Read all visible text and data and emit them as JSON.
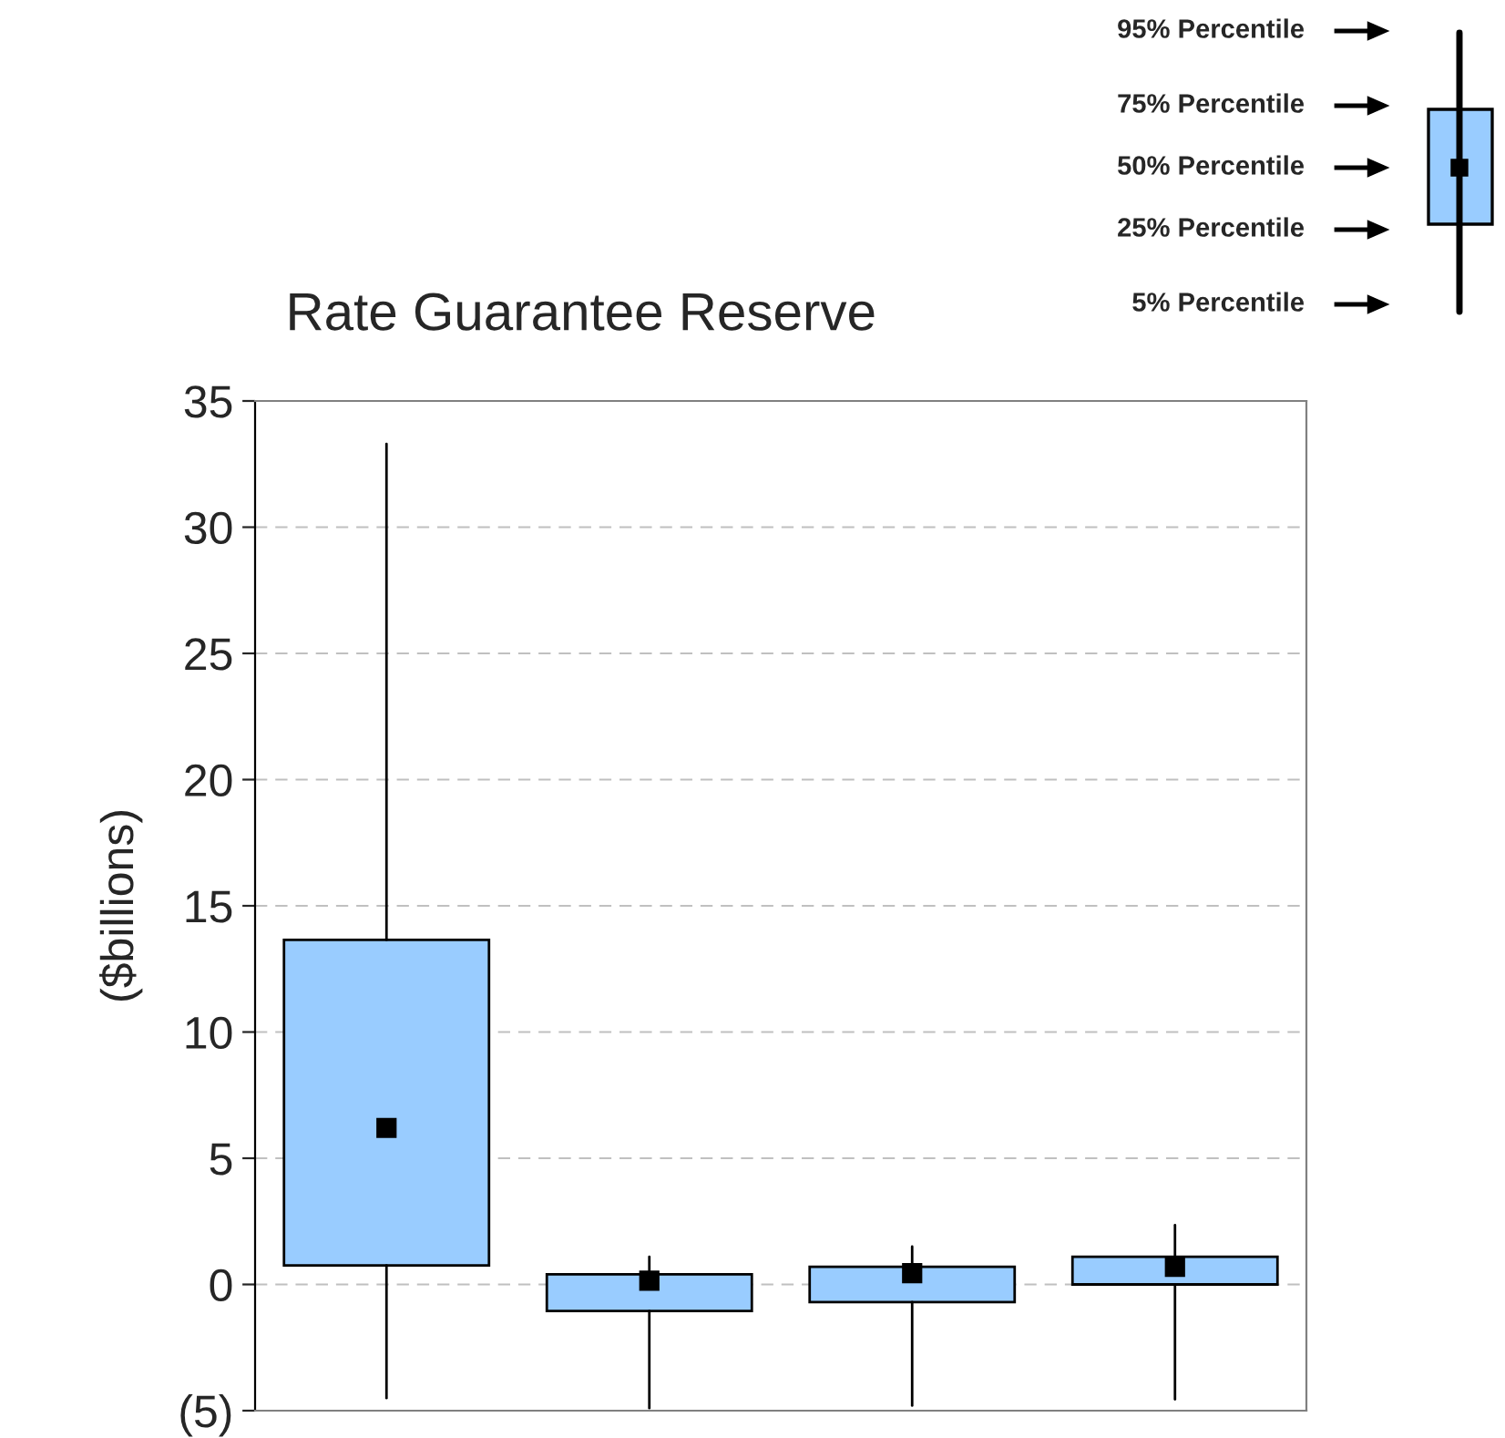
{
  "chart_data": {
    "type": "box",
    "title": "Rate Guarantee Reserve",
    "ylabel": "($billions)",
    "categories": [
      null,
      null,
      null,
      null
    ],
    "boxes": [
      {
        "low": -4.5,
        "q1": 0.75,
        "median": 6.2,
        "q3": 13.65,
        "high": 33.3
      },
      {
        "low": -4.9,
        "q1": -1.05,
        "median": 0.15,
        "q3": 0.4,
        "high": 1.1
      },
      {
        "low": -4.8,
        "q1": -0.7,
        "median": 0.45,
        "q3": 0.7,
        "high": 1.5
      },
      {
        "low": -4.55,
        "q1": 0.0,
        "median": 0.7,
        "q3": 1.1,
        "high": 2.35
      }
    ],
    "color": "#99ccff",
    "ylim": [
      -5,
      35
    ],
    "yticks": [
      {
        "value": -5,
        "label": "(5)"
      },
      0,
      5,
      10,
      15,
      20,
      25,
      30,
      35
    ],
    "grid": "y",
    "marker": "square",
    "annotations": [
      "95% Percentile",
      "75% Percentile",
      "50% Percentile",
      "25% Percentile",
      "5% Percentile"
    ]
  }
}
